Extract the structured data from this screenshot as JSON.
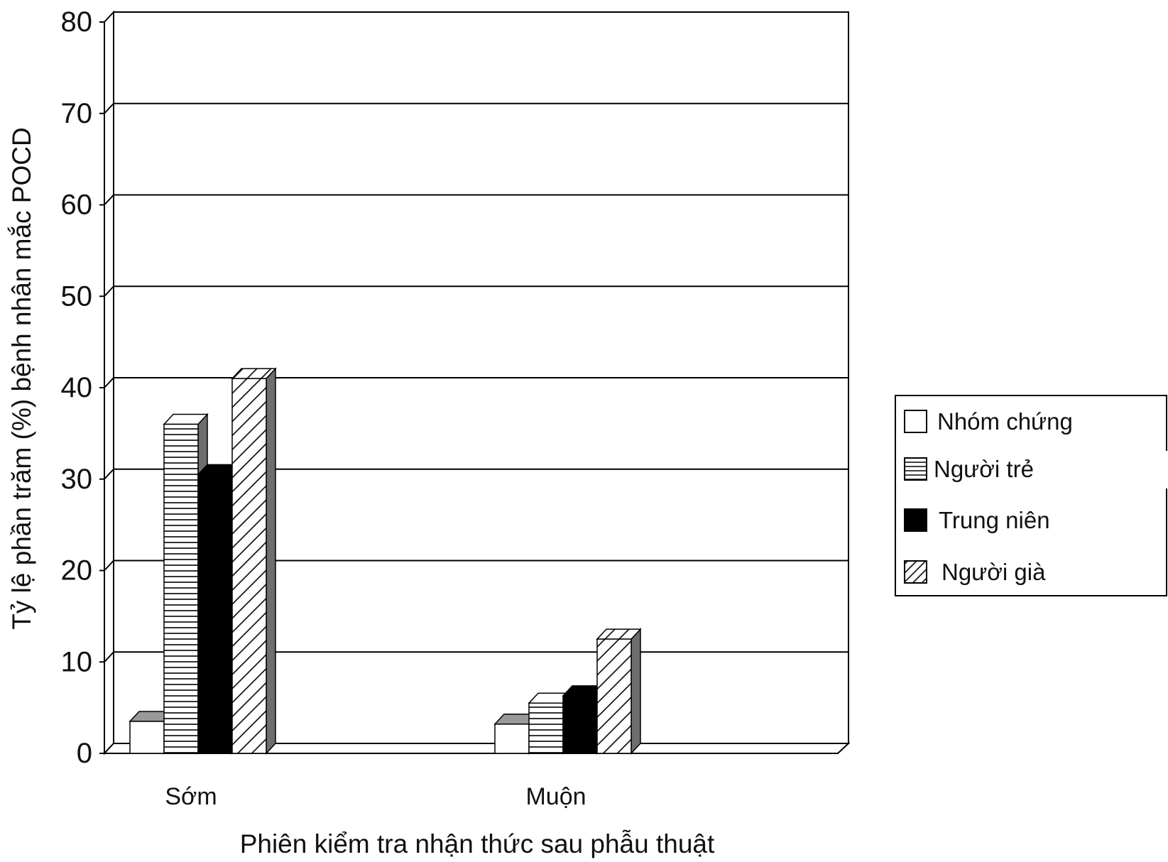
{
  "chart_data": {
    "type": "bar",
    "style": "3d-clustered-bar",
    "title": "",
    "xlabel": "Phiên kiểm tra nhận thức sau phẫu thuật",
    "ylabel": "Tỷ lệ phần trăm (%) bệnh nhân mắc POCD",
    "ylim": [
      0,
      80
    ],
    "yticks": [
      0,
      10,
      20,
      30,
      40,
      50,
      60,
      70,
      80
    ],
    "ytick_labels": [
      "0",
      "10",
      "20",
      "30",
      "40",
      "50",
      "60",
      "70",
      "80"
    ],
    "grid": true,
    "categories": [
      "Sớm",
      "Muộn"
    ],
    "legend_position": "right",
    "series": [
      {
        "name": "Nhóm chứng",
        "pattern": "white",
        "values": [
          3.5,
          3.2
        ]
      },
      {
        "name": "Người trẻ",
        "pattern": "horizontal-lines",
        "values": [
          36,
          5.5
        ]
      },
      {
        "name": "Trung niên",
        "pattern": "solid-black",
        "values": [
          30.5,
          6.3
        ]
      },
      {
        "name": "Người già",
        "pattern": "diagonal-lines",
        "values": [
          41,
          12.5
        ]
      }
    ],
    "colors": {
      "outline": "#000000",
      "fill": "#ffffff",
      "solid": "#000000",
      "side": "#6e6e6e",
      "top": "#999999"
    }
  }
}
